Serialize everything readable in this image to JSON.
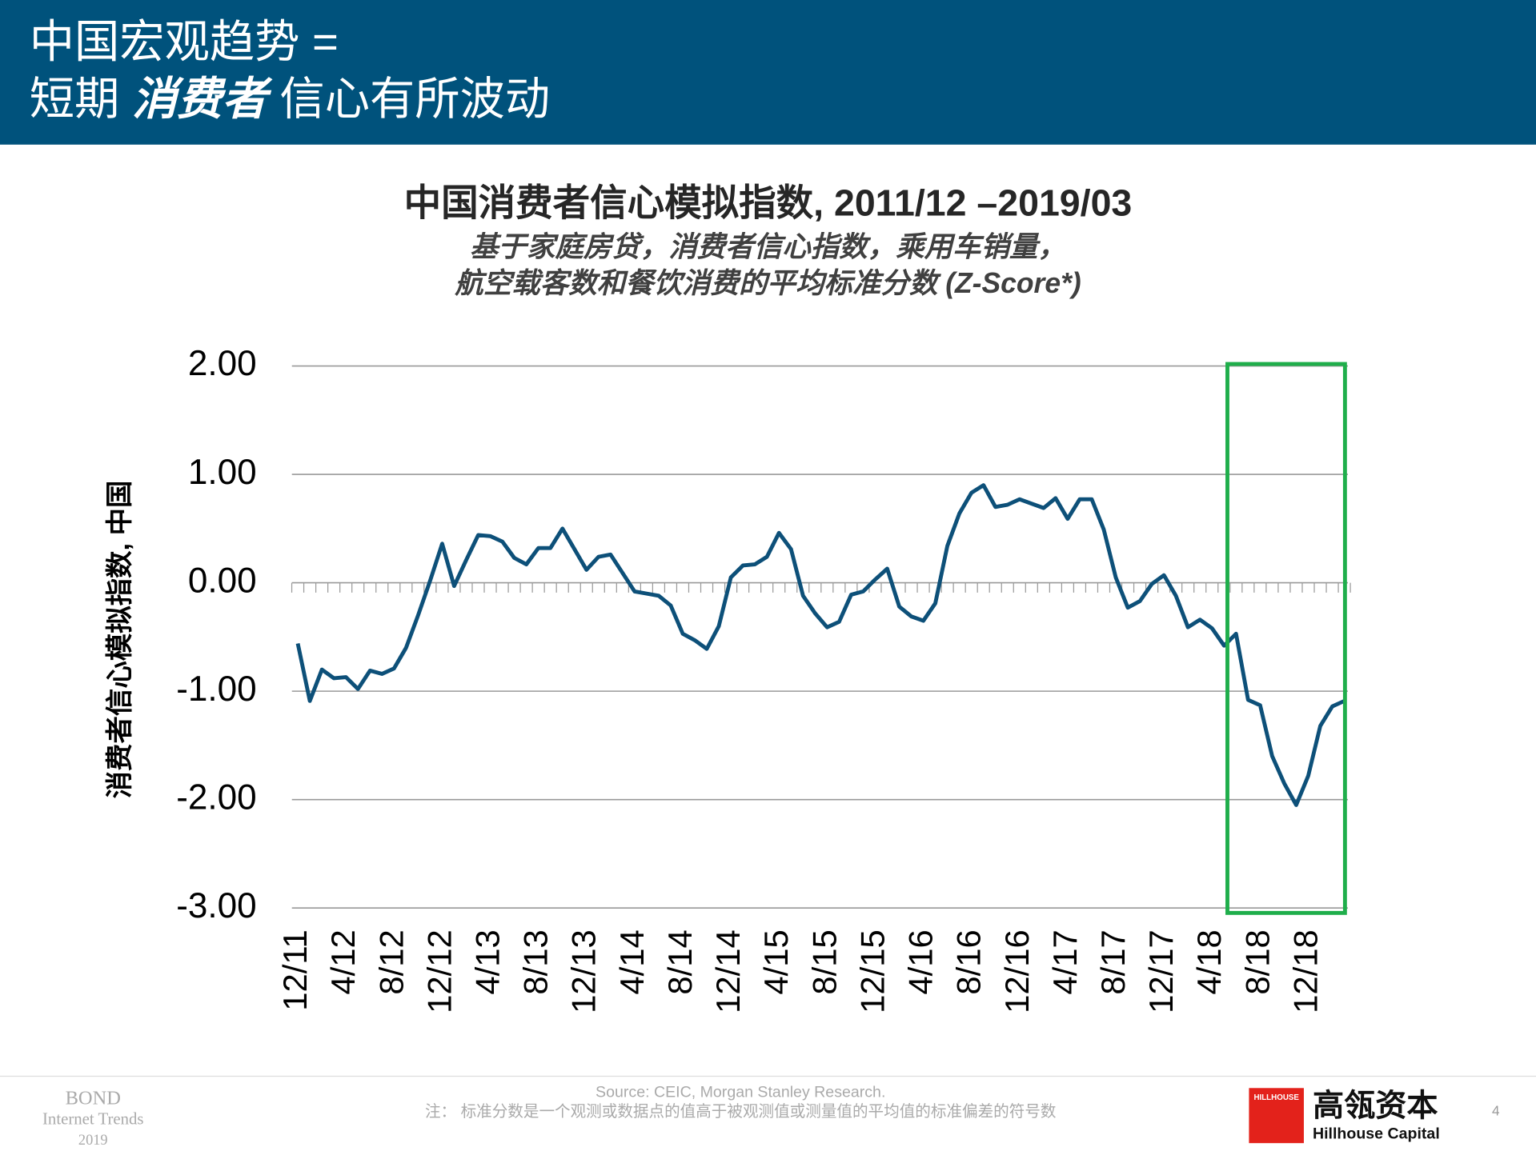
{
  "header": {
    "title_line1": "中国宏观趋势 =",
    "title_line2_a": "短期",
    "title_line2_b": "消费者",
    "title_line2_c": "信心有所波动"
  },
  "chart_data": {
    "type": "line",
    "title": "中国消费者信心模拟指数, 2011/12 –2019/03",
    "subtitle_line1": "基于家庭房贷，消费者信心指数，乘用车销量，",
    "subtitle_line2": "航空载客数和餐饮消费的平均标准分数 (Z-Score*)",
    "y_label": "消费者信心模拟指数, 中国",
    "color": "#0d5079",
    "categories": [
      "12/11",
      null,
      null,
      null,
      "4/12",
      null,
      null,
      null,
      "8/12",
      null,
      null,
      null,
      "12/12",
      null,
      null,
      null,
      "4/13",
      null,
      null,
      null,
      "8/13",
      null,
      null,
      null,
      "12/13",
      null,
      null,
      null,
      "4/14",
      null,
      null,
      null,
      "8/14",
      null,
      null,
      null,
      "12/14",
      null,
      null,
      null,
      "4/15",
      null,
      null,
      null,
      "8/15",
      null,
      null,
      null,
      "12/15",
      null,
      null,
      null,
      "4/16",
      null,
      null,
      null,
      "8/16",
      null,
      null,
      null,
      "12/16",
      null,
      null,
      null,
      "4/17",
      null,
      null,
      null,
      "8/17",
      null,
      null,
      null,
      "12/17",
      null,
      null,
      null,
      "4/18",
      null,
      null,
      null,
      "8/18",
      null,
      null,
      null,
      "12/18",
      null,
      null,
      null
    ],
    "values": [
      -0.56,
      -1.09,
      -0.8,
      -0.88,
      -0.87,
      -0.98,
      -0.81,
      -0.84,
      -0.79,
      -0.6,
      -0.3,
      0.02,
      0.36,
      -0.03,
      0.21,
      0.44,
      0.43,
      0.38,
      0.23,
      0.17,
      0.32,
      0.32,
      0.5,
      0.31,
      0.12,
      0.24,
      0.26,
      0.09,
      -0.08,
      -0.1,
      -0.12,
      -0.21,
      -0.47,
      -0.53,
      -0.61,
      -0.4,
      0.05,
      0.16,
      0.17,
      0.24,
      0.46,
      0.31,
      -0.12,
      -0.28,
      -0.41,
      -0.36,
      -0.11,
      -0.08,
      0.03,
      0.13,
      -0.22,
      -0.31,
      -0.35,
      -0.19,
      0.34,
      0.64,
      0.83,
      0.9,
      0.7,
      0.72,
      0.77,
      0.73,
      0.69,
      0.78,
      0.59,
      0.77,
      0.77,
      0.49,
      0.05,
      -0.23,
      -0.17,
      -0.01,
      0.07,
      -0.12,
      -0.41,
      -0.34,
      -0.42,
      -0.58,
      -0.47,
      -1.08,
      -1.13,
      -1.6,
      -1.85,
      -2.05,
      -1.78,
      -1.32,
      -1.14,
      -1.09
    ],
    "ylim": [
      -3,
      2
    ],
    "yticks": [
      {
        "value": 2,
        "label": "2.00"
      },
      {
        "value": 1,
        "label": "1.00"
      },
      {
        "value": 0,
        "label": "0.00"
      },
      {
        "value": -1,
        "label": "-1.00"
      },
      {
        "value": -2,
        "label": "-2.00"
      },
      {
        "value": -3,
        "label": "-3.00"
      }
    ],
    "grid": true
  },
  "footer": {
    "bond": "BOND",
    "trends": "Internet Trends",
    "year": "2019",
    "source": "Source: CEIC, Morgan Stanley Research.",
    "note": "注： 标准分数是一个观测或数据点的值高于被观测值或测量值的平均值的标准偏差的符号数",
    "logo_small": "HILLHOUSE",
    "logo_cn": "高瓴资本",
    "logo_en": "Hillhouse Capital",
    "page": "4"
  }
}
